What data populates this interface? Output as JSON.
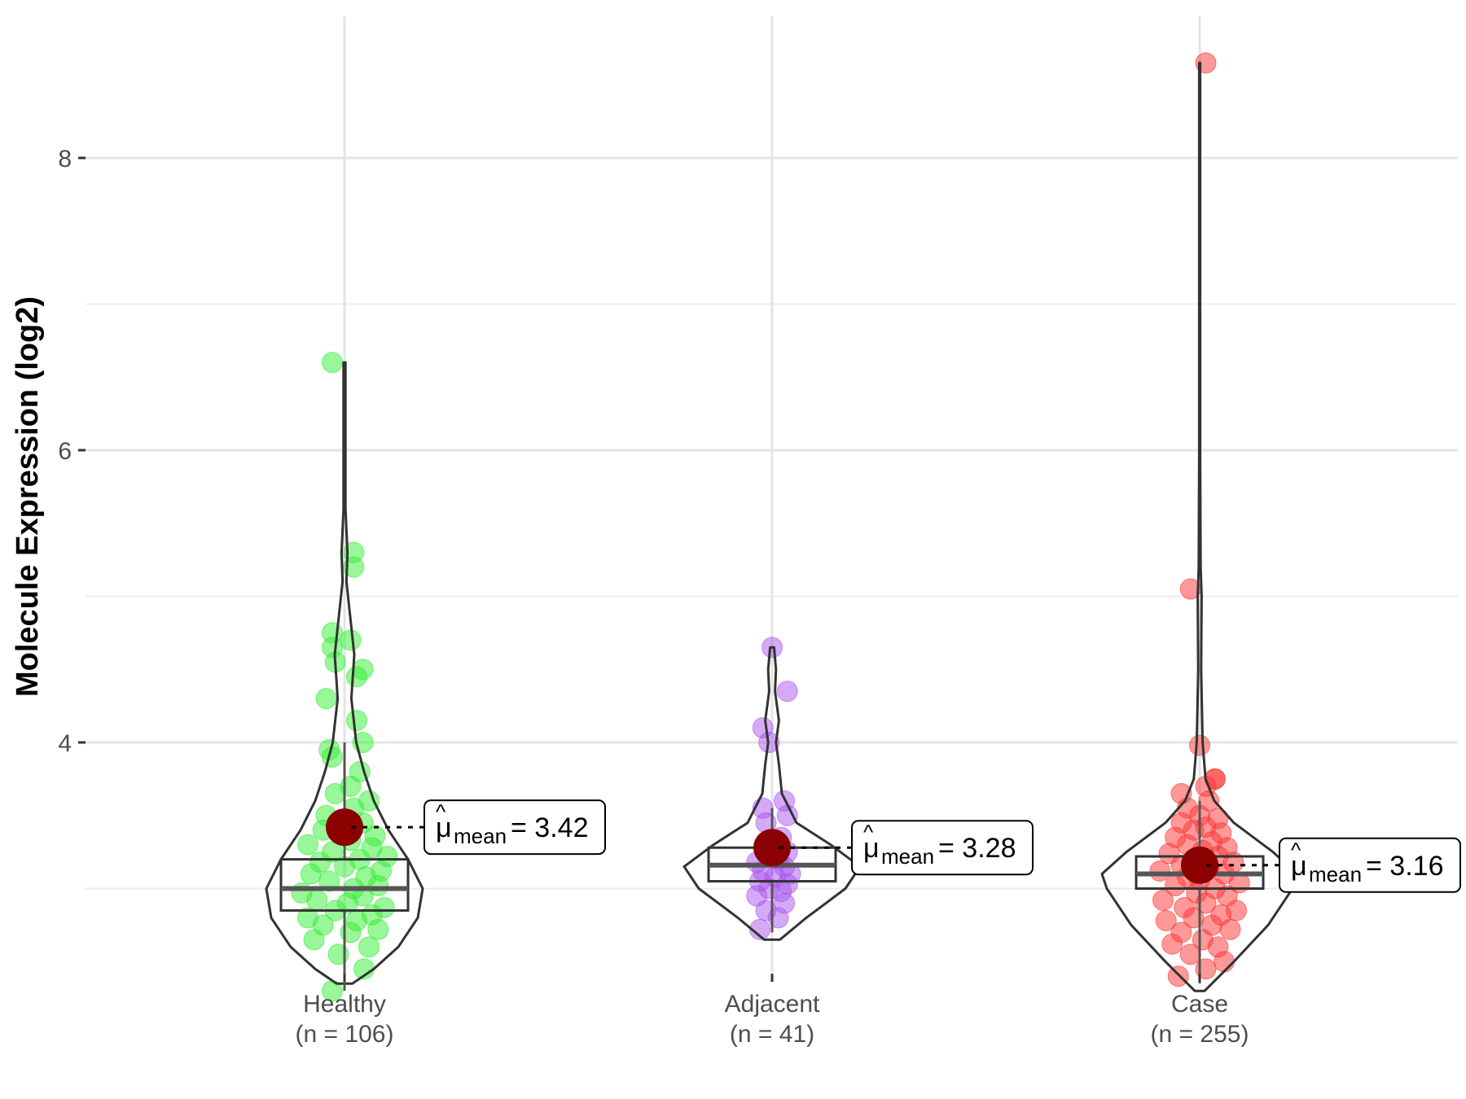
{
  "chart_data": {
    "type": "violin",
    "ylabel": "Molecule Expression (log2)",
    "ylim": [
      2.0,
      8.8
    ],
    "yticks": [
      4,
      6,
      8
    ],
    "gridlines_minor": [
      3,
      5,
      7
    ],
    "colors": {
      "Healthy": "#33ee33",
      "Adjacent": "#aa55ee",
      "Case": "#ff3333",
      "mean_dot": "#8b0000",
      "outline": "#333333"
    },
    "groups": [
      {
        "name": "Healthy",
        "n_label": "(n = 106)",
        "mean": 3.42,
        "mean_label_sym": "μ",
        "mean_label_sub": "mean",
        "mean_label_value": "= 3.42",
        "box": {
          "q1": 2.85,
          "median": 3.0,
          "q3": 3.2,
          "whisker_low": 2.3,
          "whisker_high": 4.0
        },
        "max": 6.6,
        "min": 2.35,
        "violin": [
          [
            2.35,
            0.08
          ],
          [
            2.45,
            0.3
          ],
          [
            2.6,
            0.55
          ],
          [
            2.8,
            0.75
          ],
          [
            3.0,
            0.8
          ],
          [
            3.2,
            0.65
          ],
          [
            3.4,
            0.45
          ],
          [
            3.6,
            0.3
          ],
          [
            3.8,
            0.2
          ],
          [
            4.0,
            0.12
          ],
          [
            4.3,
            0.07
          ],
          [
            4.6,
            0.1
          ],
          [
            4.85,
            0.06
          ],
          [
            5.1,
            0.02
          ],
          [
            5.3,
            0.03
          ],
          [
            5.6,
            0.01
          ],
          [
            6.0,
            0.01
          ],
          [
            6.6,
            0.01
          ]
        ],
        "points": [
          [
            2.3,
            -0.2
          ],
          [
            2.45,
            0.32
          ],
          [
            2.55,
            -0.1
          ],
          [
            2.6,
            0.4
          ],
          [
            2.65,
            -0.5
          ],
          [
            2.7,
            0.1
          ],
          [
            2.72,
            0.55
          ],
          [
            2.75,
            -0.35
          ],
          [
            2.78,
            0.2
          ],
          [
            2.8,
            -0.6
          ],
          [
            2.82,
            0.45
          ],
          [
            2.85,
            -0.15
          ],
          [
            2.87,
            0.65
          ],
          [
            2.9,
            0.05
          ],
          [
            2.92,
            -0.45
          ],
          [
            2.95,
            0.3
          ],
          [
            2.97,
            -0.7
          ],
          [
            3.0,
            0.15
          ],
          [
            3.02,
            0.55
          ],
          [
            3.05,
            -0.25
          ],
          [
            3.08,
            0.35
          ],
          [
            3.1,
            -0.55
          ],
          [
            3.12,
            0.6
          ],
          [
            3.15,
            0.0
          ],
          [
            3.18,
            -0.4
          ],
          [
            3.2,
            0.25
          ],
          [
            3.22,
            0.7
          ],
          [
            3.25,
            -0.2
          ],
          [
            3.28,
            0.45
          ],
          [
            3.3,
            -0.6
          ],
          [
            3.33,
            0.1
          ],
          [
            3.36,
            0.5
          ],
          [
            3.4,
            -0.35
          ],
          [
            3.45,
            0.3
          ],
          [
            3.5,
            -0.3
          ],
          [
            3.55,
            0.15
          ],
          [
            3.6,
            0.4
          ],
          [
            3.65,
            -0.15
          ],
          [
            3.7,
            0.1
          ],
          [
            3.8,
            0.25
          ],
          [
            3.9,
            -0.2
          ],
          [
            3.95,
            -0.25
          ],
          [
            4.0,
            0.3
          ],
          [
            4.15,
            0.2
          ],
          [
            4.3,
            -0.3
          ],
          [
            4.45,
            0.2
          ],
          [
            4.5,
            0.3
          ],
          [
            4.55,
            -0.15
          ],
          [
            4.65,
            -0.2
          ],
          [
            4.7,
            0.1
          ],
          [
            4.75,
            -0.2
          ],
          [
            5.2,
            0.15
          ],
          [
            5.3,
            0.15
          ],
          [
            6.6,
            -0.2
          ]
        ]
      },
      {
        "name": "Adjacent",
        "n_label": "(n = 41)",
        "mean": 3.28,
        "mean_label_sym": "μ",
        "mean_label_sub": "mean",
        "mean_label_value": "= 3.28",
        "box": {
          "q1": 3.05,
          "median": 3.16,
          "q3": 3.28,
          "whisker_low": 2.7,
          "whisker_high": 3.55
        },
        "max": 4.65,
        "min": 2.65,
        "violin": [
          [
            2.65,
            0.08
          ],
          [
            2.8,
            0.35
          ],
          [
            3.0,
            0.75
          ],
          [
            3.15,
            0.9
          ],
          [
            3.3,
            0.6
          ],
          [
            3.45,
            0.25
          ],
          [
            3.65,
            0.1
          ],
          [
            3.85,
            0.07
          ],
          [
            4.0,
            0.04
          ],
          [
            4.15,
            0.07
          ],
          [
            4.35,
            0.03
          ],
          [
            4.5,
            0.04
          ],
          [
            4.65,
            0.02
          ]
        ],
        "points": [
          [
            2.72,
            -0.2
          ],
          [
            2.8,
            0.1
          ],
          [
            2.85,
            -0.1
          ],
          [
            2.9,
            0.2
          ],
          [
            2.95,
            -0.25
          ],
          [
            2.98,
            0.15
          ],
          [
            3.0,
            -0.05
          ],
          [
            3.03,
            0.25
          ],
          [
            3.05,
            -0.2
          ],
          [
            3.08,
            0.05
          ],
          [
            3.1,
            0.3
          ],
          [
            3.12,
            -0.15
          ],
          [
            3.15,
            0.2
          ],
          [
            3.18,
            -0.25
          ],
          [
            3.2,
            0.1
          ],
          [
            3.22,
            -0.05
          ],
          [
            3.25,
            0.25
          ],
          [
            3.3,
            -0.1
          ],
          [
            3.35,
            0.15
          ],
          [
            3.45,
            -0.1
          ],
          [
            3.5,
            0.25
          ],
          [
            3.55,
            -0.15
          ],
          [
            3.6,
            0.2
          ],
          [
            4.0,
            -0.05
          ],
          [
            4.1,
            -0.15
          ],
          [
            4.35,
            0.25
          ],
          [
            4.65,
            0.0
          ]
        ]
      },
      {
        "name": "Case",
        "n_label": "(n = 255)",
        "mean": 3.16,
        "mean_label_sym": "μ",
        "mean_label_sub": "mean",
        "mean_label_value": "= 3.16",
        "box": {
          "q1": 3.0,
          "median": 3.1,
          "q3": 3.22,
          "whisker_low": 2.35,
          "whisker_high": 3.6
        },
        "max": 8.65,
        "min": 2.3,
        "violin": [
          [
            2.3,
            0.05
          ],
          [
            2.5,
            0.35
          ],
          [
            2.75,
            0.7
          ],
          [
            3.0,
            0.95
          ],
          [
            3.1,
            1.0
          ],
          [
            3.25,
            0.75
          ],
          [
            3.45,
            0.35
          ],
          [
            3.6,
            0.15
          ],
          [
            3.75,
            0.06
          ],
          [
            4.0,
            0.03
          ],
          [
            4.5,
            0.015
          ],
          [
            5.0,
            0.02
          ],
          [
            5.2,
            0.01
          ],
          [
            6.0,
            0.005
          ],
          [
            7.0,
            0.005
          ],
          [
            8.65,
            0.005
          ]
        ],
        "points": [
          [
            2.4,
            -0.35
          ],
          [
            2.45,
            0.1
          ],
          [
            2.5,
            0.4
          ],
          [
            2.55,
            -0.15
          ],
          [
            2.6,
            0.3
          ],
          [
            2.62,
            -0.45
          ],
          [
            2.65,
            0.05
          ],
          [
            2.7,
            -0.3
          ],
          [
            2.72,
            0.5
          ],
          [
            2.75,
            0.2
          ],
          [
            2.78,
            -0.55
          ],
          [
            2.8,
            -0.1
          ],
          [
            2.82,
            0.35
          ],
          [
            2.85,
            0.6
          ],
          [
            2.87,
            -0.25
          ],
          [
            2.9,
            0.1
          ],
          [
            2.92,
            -0.6
          ],
          [
            2.95,
            0.45
          ],
          [
            2.97,
            -0.05
          ],
          [
            3.0,
            0.25
          ],
          [
            3.02,
            -0.4
          ],
          [
            3.04,
            0.65
          ],
          [
            3.06,
            0.0
          ],
          [
            3.08,
            -0.2
          ],
          [
            3.1,
            0.4
          ],
          [
            3.12,
            -0.65
          ],
          [
            3.14,
            0.15
          ],
          [
            3.16,
            -0.3
          ],
          [
            3.18,
            0.55
          ],
          [
            3.2,
            -0.1
          ],
          [
            3.22,
            0.3
          ],
          [
            3.24,
            -0.5
          ],
          [
            3.26,
            0.05
          ],
          [
            3.28,
            0.45
          ],
          [
            3.3,
            -0.2
          ],
          [
            3.32,
            0.2
          ],
          [
            3.35,
            -0.4
          ],
          [
            3.38,
            0.35
          ],
          [
            3.4,
            -0.1
          ],
          [
            3.42,
            0.1
          ],
          [
            3.45,
            -0.3
          ],
          [
            3.48,
            0.3
          ],
          [
            3.5,
            0.0
          ],
          [
            3.55,
            -0.2
          ],
          [
            3.6,
            0.15
          ],
          [
            3.65,
            -0.3
          ],
          [
            3.7,
            0.1
          ],
          [
            3.75,
            0.25
          ],
          [
            3.98,
            0.0
          ],
          [
            3.75,
            0.25
          ],
          [
            5.05,
            -0.15
          ],
          [
            8.65,
            0.1
          ]
        ]
      }
    ]
  }
}
